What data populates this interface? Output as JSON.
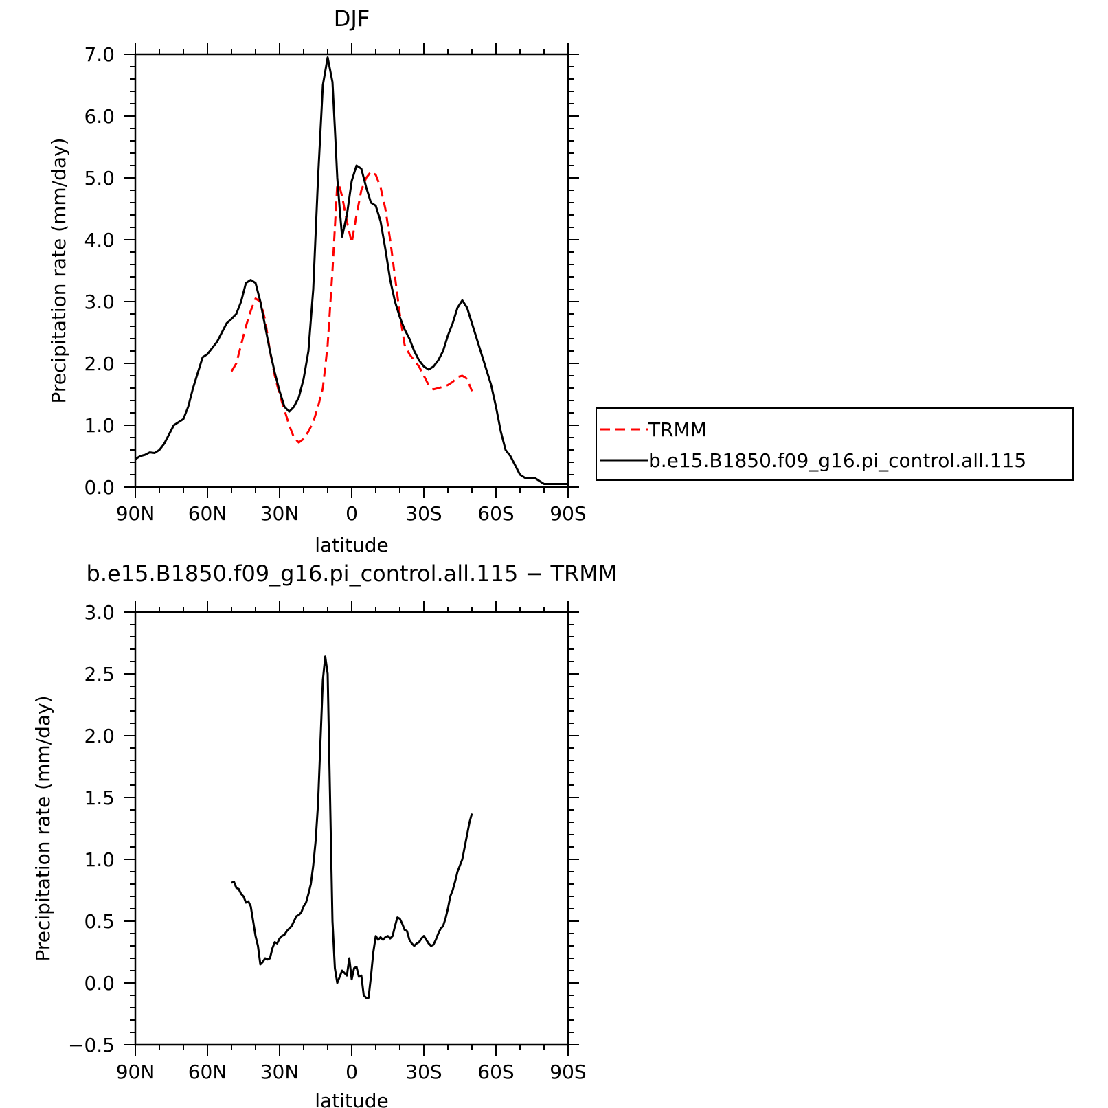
{
  "chart_data": [
    {
      "type": "line",
      "title": "DJF",
      "xlabel": "latitude",
      "ylabel": "Precipitation rate (mm/day)",
      "xlim": [
        90,
        -90
      ],
      "ylim": [
        0,
        7
      ],
      "x_tick_values": [
        90,
        60,
        30,
        0,
        -30,
        -60,
        -90
      ],
      "x_tick_labels": [
        "90N",
        "60N",
        "30N",
        "0",
        "30S",
        "60S",
        "90S"
      ],
      "y_tick_values": [
        0,
        1,
        2,
        3,
        4,
        5,
        6,
        7
      ],
      "y_tick_labels": [
        "0.0",
        "1.0",
        "2.0",
        "3.0",
        "4.0",
        "5.0",
        "6.0",
        "7.0"
      ],
      "grid": false,
      "legend_position": "right",
      "series": [
        {
          "name": "TRMM",
          "color": "#ff0000",
          "dash": "dashed",
          "x": [
            50,
            48,
            46,
            44,
            42,
            40,
            38,
            36,
            34,
            32,
            30,
            28,
            26,
            24,
            22,
            20,
            18,
            16,
            14,
            12,
            10,
            8,
            6,
            5,
            4,
            2,
            0,
            -2,
            -4,
            -6,
            -8,
            -10,
            -12,
            -14,
            -16,
            -18,
            -20,
            -22,
            -24,
            -26,
            -28,
            -30,
            -32,
            -34,
            -36,
            -38,
            -40,
            -42,
            -44,
            -46,
            -48,
            -50
          ],
          "y": [
            1.87,
            2.0,
            2.3,
            2.6,
            2.85,
            3.05,
            3.0,
            2.7,
            2.2,
            1.8,
            1.5,
            1.25,
            1.0,
            0.8,
            0.72,
            0.78,
            0.9,
            1.05,
            1.3,
            1.6,
            2.3,
            3.5,
            4.9,
            4.85,
            4.7,
            4.3,
            3.95,
            4.4,
            4.8,
            5.0,
            5.1,
            5.05,
            4.85,
            4.5,
            4.0,
            3.4,
            2.8,
            2.3,
            2.15,
            2.05,
            1.95,
            1.8,
            1.65,
            1.58,
            1.6,
            1.62,
            1.65,
            1.7,
            1.78,
            1.8,
            1.75,
            1.55
          ]
        },
        {
          "name": "b.e15.B1850.f09_g16.pi_control.all.115",
          "color": "#000000",
          "dash": "solid",
          "x": [
            90,
            88,
            86,
            84,
            82,
            80,
            78,
            76,
            74,
            72,
            70,
            68,
            66,
            64,
            62,
            60,
            58,
            56,
            54,
            52,
            50,
            48,
            46,
            44,
            42,
            40,
            38,
            36,
            34,
            32,
            30,
            28,
            26,
            24,
            22,
            20,
            18,
            16,
            14,
            12,
            10,
            8,
            7,
            6,
            5,
            4,
            2,
            0,
            -2,
            -4,
            -6,
            -8,
            -10,
            -12,
            -14,
            -16,
            -18,
            -20,
            -22,
            -24,
            -26,
            -28,
            -30,
            -32,
            -34,
            -36,
            -38,
            -40,
            -42,
            -44,
            -46,
            -48,
            -50,
            -52,
            -54,
            -56,
            -58,
            -60,
            -62,
            -64,
            -66,
            -68,
            -70,
            -72,
            -74,
            -76,
            -78,
            -80,
            -82,
            -84,
            -86,
            -88,
            -90
          ],
          "y": [
            0.45,
            0.5,
            0.52,
            0.56,
            0.55,
            0.6,
            0.7,
            0.85,
            1.0,
            1.05,
            1.1,
            1.3,
            1.6,
            1.85,
            2.1,
            2.15,
            2.25,
            2.35,
            2.5,
            2.65,
            2.72,
            2.8,
            3.0,
            3.3,
            3.35,
            3.3,
            3.0,
            2.6,
            2.2,
            1.85,
            1.55,
            1.3,
            1.22,
            1.3,
            1.45,
            1.75,
            2.2,
            3.2,
            5.0,
            6.5,
            6.95,
            6.55,
            5.8,
            5.0,
            4.5,
            4.05,
            4.4,
            4.95,
            5.2,
            5.15,
            4.85,
            4.6,
            4.55,
            4.3,
            3.85,
            3.35,
            3.0,
            2.75,
            2.55,
            2.4,
            2.2,
            2.05,
            1.95,
            1.9,
            1.95,
            2.05,
            2.2,
            2.45,
            2.65,
            2.9,
            3.02,
            2.9,
            2.65,
            2.4,
            2.15,
            1.9,
            1.65,
            1.3,
            0.9,
            0.6,
            0.5,
            0.35,
            0.2,
            0.15,
            0.15,
            0.15,
            0.1,
            0.05,
            0.05,
            0.05,
            0.05,
            0.05,
            0.05
          ]
        }
      ]
    },
    {
      "type": "line",
      "title": "b.e15.B1850.f09_g16.pi_control.all.115 − TRMM",
      "xlabel": "latitude",
      "ylabel": "Precipitation rate (mm/day)",
      "xlim": [
        90,
        -90
      ],
      "ylim": [
        -0.5,
        3
      ],
      "x_tick_values": [
        90,
        60,
        30,
        0,
        -30,
        -60,
        -90
      ],
      "x_tick_labels": [
        "90N",
        "60N",
        "30N",
        "0",
        "30S",
        "60S",
        "90S"
      ],
      "y_tick_values": [
        -0.5,
        0,
        0.5,
        1,
        1.5,
        2,
        2.5,
        3
      ],
      "y_tick_labels": [
        "−0.5",
        "0.0",
        "0.5",
        "1.0",
        "1.5",
        "2.0",
        "2.5",
        "3.0"
      ],
      "grid": false,
      "series": [
        {
          "color": "#000000",
          "dash": "solid",
          "x": [
            50,
            49,
            48,
            47,
            46,
            45,
            44,
            43,
            42,
            41,
            40,
            39,
            38,
            37,
            36,
            35,
            34,
            33,
            32,
            31,
            30,
            29,
            28,
            27,
            26,
            25,
            24,
            23,
            22,
            21,
            20,
            19,
            18,
            17,
            16,
            15,
            14,
            13,
            12,
            11,
            10,
            9,
            8,
            7,
            6,
            5,
            4,
            3,
            2,
            1,
            0,
            -1,
            -2,
            -3,
            -4,
            -5,
            -6,
            -7,
            -8,
            -9,
            -10,
            -11,
            -12,
            -13,
            -14,
            -15,
            -16,
            -17,
            -18,
            -19,
            -20,
            -21,
            -22,
            -23,
            -24,
            -25,
            -26,
            -27,
            -28,
            -29,
            -30,
            -31,
            -32,
            -33,
            -34,
            -35,
            -36,
            -37,
            -38,
            -39,
            -40,
            -41,
            -42,
            -43,
            -44,
            -45,
            -46,
            -47,
            -48,
            -49,
            -50
          ],
          "y": [
            0.81,
            0.82,
            0.77,
            0.76,
            0.72,
            0.7,
            0.65,
            0.66,
            0.62,
            0.5,
            0.38,
            0.3,
            0.15,
            0.17,
            0.2,
            0.19,
            0.2,
            0.28,
            0.33,
            0.32,
            0.36,
            0.38,
            0.39,
            0.42,
            0.44,
            0.46,
            0.5,
            0.54,
            0.55,
            0.57,
            0.62,
            0.65,
            0.72,
            0.8,
            0.95,
            1.15,
            1.45,
            1.95,
            2.45,
            2.64,
            2.5,
            1.5,
            0.5,
            0.12,
            0.0,
            0.05,
            0.1,
            0.08,
            0.06,
            0.2,
            0.03,
            0.12,
            0.13,
            0.05,
            0.06,
            -0.1,
            -0.12,
            -0.12,
            0.05,
            0.25,
            0.38,
            0.35,
            0.37,
            0.35,
            0.37,
            0.38,
            0.36,
            0.38,
            0.46,
            0.53,
            0.52,
            0.48,
            0.43,
            0.42,
            0.35,
            0.32,
            0.3,
            0.32,
            0.33,
            0.36,
            0.38,
            0.35,
            0.32,
            0.3,
            0.31,
            0.35,
            0.4,
            0.44,
            0.46,
            0.52,
            0.6,
            0.7,
            0.75,
            0.82,
            0.9,
            0.95,
            1.0,
            1.1,
            1.2,
            1.3,
            1.37
          ]
        }
      ]
    }
  ]
}
